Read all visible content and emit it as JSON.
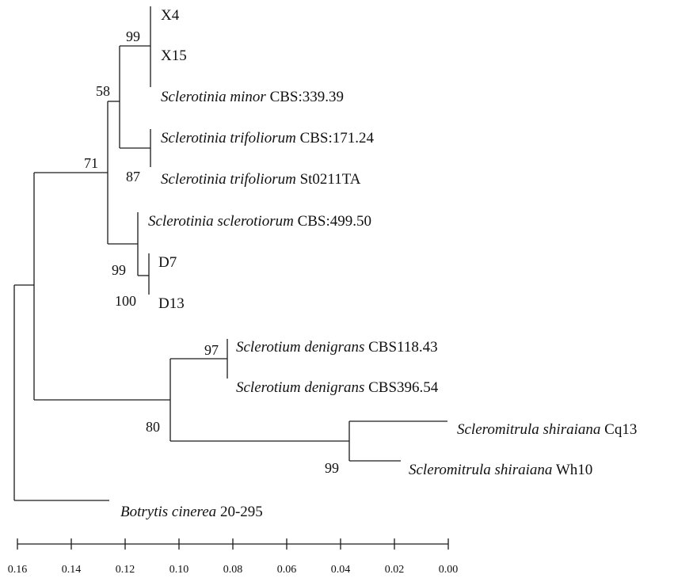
{
  "taxa": [
    {
      "id": "X4",
      "genus_species": "",
      "strain": "X4"
    },
    {
      "id": "X15",
      "genus_species": "",
      "strain": "X15"
    },
    {
      "id": "minor",
      "genus_species": "Sclerotinia minor",
      "strain": "CBS:339.39"
    },
    {
      "id": "trif1",
      "genus_species": "Sclerotinia trifoliorum",
      "strain": "CBS:171.24"
    },
    {
      "id": "trif2",
      "genus_species": "Sclerotinia trifoliorum",
      "strain": "St0211TA"
    },
    {
      "id": "scler",
      "genus_species": "Sclerotinia sclerotiorum",
      "strain": "CBS:499.50"
    },
    {
      "id": "D7",
      "genus_species": "",
      "strain": "D7"
    },
    {
      "id": "D13",
      "genus_species": "",
      "strain": "D13"
    },
    {
      "id": "den1",
      "genus_species": "Sclerotium denigrans",
      "strain": "CBS118.43"
    },
    {
      "id": "den2",
      "genus_species": "Sclerotium denigrans",
      "strain": "CBS396.54"
    },
    {
      "id": "shi1",
      "genus_species": "Scleromitrula shiraiana",
      "strain": "Cq13"
    },
    {
      "id": "shi2",
      "genus_species": "Scleromitrula shiraiana",
      "strain": "Wh10"
    },
    {
      "id": "bot",
      "genus_species": "Botrytis cinerea",
      "strain": "20-295"
    }
  ],
  "bootstrap": [
    "99",
    "58",
    "87",
    "71",
    "99",
    "100",
    "97",
    "80",
    "99"
  ],
  "scale_axis": {
    "min": 0.0,
    "max": 0.16,
    "ticks": [
      "0.16",
      "0.14",
      "0.12",
      "0.10",
      "0.08",
      "0.06",
      "0.04",
      "0.02",
      "0.00"
    ]
  }
}
